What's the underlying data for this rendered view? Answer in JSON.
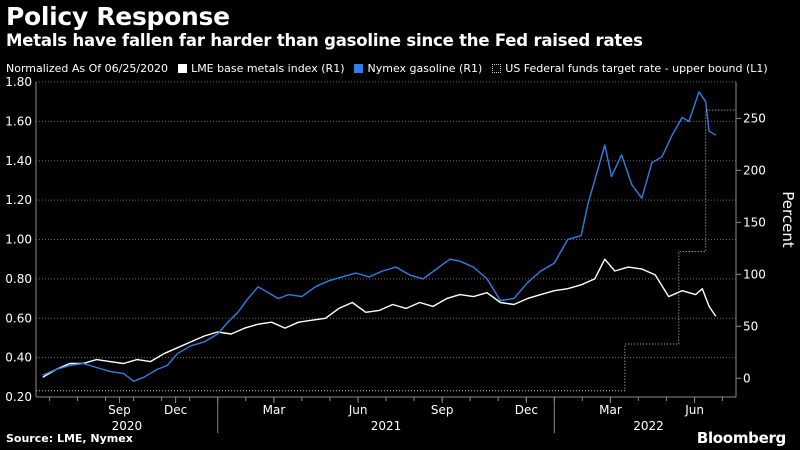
{
  "title": "Policy Response",
  "subtitle": "Metals have fallen far harder than gasoline since the Fed raised rates",
  "legend_note": "Normalized As Of 06/25/2020",
  "source": "Source: LME, Nymex",
  "brand": "Bloomberg",
  "colors": {
    "background": "#000000",
    "metals": "#ffffff",
    "gasoline": "#2f7fe8",
    "fed": "#cccccc",
    "grid": "#6a6a6a",
    "axis": "#8a8a8a"
  },
  "chart_data": {
    "type": "line",
    "title": "Policy Response",
    "xlabel": "",
    "ylabel_left": "",
    "ylabel_right": "Percent",
    "x_range": [
      2020.46,
      2022.54
    ],
    "y_left": {
      "range": [
        0.2,
        1.8
      ],
      "ticks": [
        0.2,
        0.4,
        0.6,
        0.8,
        1.0,
        1.2,
        1.4,
        1.6,
        1.8
      ],
      "tick_labels": [
        "0.20",
        "0.40",
        "0.60",
        "0.80",
        "1.00",
        "1.20",
        "1.40",
        "1.60",
        "1.80"
      ]
    },
    "y_right": {
      "range": [
        -18,
        285
      ],
      "ticks": [
        0,
        50,
        100,
        150,
        200,
        250
      ],
      "tick_labels": [
        "0",
        "50",
        "100",
        "150",
        "200",
        "250"
      ]
    },
    "x_month_ticks": [
      {
        "x": 2020.708,
        "label": "Sep"
      },
      {
        "x": 2020.875,
        "label": "Dec"
      },
      {
        "x": 2021.167,
        "label": "Mar"
      },
      {
        "x": 2021.417,
        "label": "Jun"
      },
      {
        "x": 2021.667,
        "label": "Sep"
      },
      {
        "x": 2021.917,
        "label": "Dec"
      },
      {
        "x": 2022.167,
        "label": "Mar"
      },
      {
        "x": 2022.417,
        "label": "Jun"
      }
    ],
    "x_year_labels": [
      {
        "x": 2020.73,
        "label": "2020"
      },
      {
        "x": 2021.5,
        "label": "2021"
      },
      {
        "x": 2022.28,
        "label": "2022"
      }
    ],
    "x_year_dividers": [
      2021.0,
      2022.0
    ],
    "grid": true,
    "legend_position": "top",
    "series": [
      {
        "name": "LME base metals index (R1)",
        "axis": "left",
        "color": "#ffffff",
        "points": [
          [
            2020.48,
            0.3
          ],
          [
            2020.52,
            0.34
          ],
          [
            2020.56,
            0.37
          ],
          [
            2020.6,
            0.37
          ],
          [
            2020.64,
            0.39
          ],
          [
            2020.68,
            0.38
          ],
          [
            2020.72,
            0.37
          ],
          [
            2020.76,
            0.39
          ],
          [
            2020.8,
            0.38
          ],
          [
            2020.84,
            0.42
          ],
          [
            2020.88,
            0.45
          ],
          [
            2020.92,
            0.48
          ],
          [
            2020.96,
            0.51
          ],
          [
            2021.0,
            0.53
          ],
          [
            2021.04,
            0.52
          ],
          [
            2021.08,
            0.55
          ],
          [
            2021.12,
            0.57
          ],
          [
            2021.16,
            0.58
          ],
          [
            2021.2,
            0.55
          ],
          [
            2021.24,
            0.58
          ],
          [
            2021.28,
            0.59
          ],
          [
            2021.32,
            0.6
          ],
          [
            2021.36,
            0.65
          ],
          [
            2021.4,
            0.68
          ],
          [
            2021.44,
            0.63
          ],
          [
            2021.48,
            0.64
          ],
          [
            2021.52,
            0.67
          ],
          [
            2021.56,
            0.65
          ],
          [
            2021.6,
            0.68
          ],
          [
            2021.64,
            0.66
          ],
          [
            2021.68,
            0.7
          ],
          [
            2021.72,
            0.72
          ],
          [
            2021.76,
            0.71
          ],
          [
            2021.8,
            0.73
          ],
          [
            2021.84,
            0.68
          ],
          [
            2021.88,
            0.67
          ],
          [
            2021.92,
            0.7
          ],
          [
            2021.96,
            0.72
          ],
          [
            2022.0,
            0.74
          ],
          [
            2022.04,
            0.75
          ],
          [
            2022.08,
            0.77
          ],
          [
            2022.12,
            0.8
          ],
          [
            2022.15,
            0.9
          ],
          [
            2022.18,
            0.84
          ],
          [
            2022.22,
            0.86
          ],
          [
            2022.26,
            0.85
          ],
          [
            2022.3,
            0.82
          ],
          [
            2022.34,
            0.71
          ],
          [
            2022.38,
            0.74
          ],
          [
            2022.42,
            0.72
          ],
          [
            2022.44,
            0.75
          ],
          [
            2022.46,
            0.66
          ],
          [
            2022.48,
            0.61
          ]
        ]
      },
      {
        "name": "Nymex gasoline (R1)",
        "axis": "left",
        "color": "#2f7fe8",
        "points": [
          [
            2020.48,
            0.31
          ],
          [
            2020.52,
            0.34
          ],
          [
            2020.56,
            0.36
          ],
          [
            2020.6,
            0.37
          ],
          [
            2020.64,
            0.35
          ],
          [
            2020.68,
            0.33
          ],
          [
            2020.72,
            0.32
          ],
          [
            2020.75,
            0.28
          ],
          [
            2020.78,
            0.3
          ],
          [
            2020.82,
            0.34
          ],
          [
            2020.85,
            0.36
          ],
          [
            2020.88,
            0.42
          ],
          [
            2020.92,
            0.46
          ],
          [
            2020.96,
            0.48
          ],
          [
            2021.0,
            0.52
          ],
          [
            2021.03,
            0.58
          ],
          [
            2021.06,
            0.63
          ],
          [
            2021.09,
            0.7
          ],
          [
            2021.12,
            0.76
          ],
          [
            2021.15,
            0.73
          ],
          [
            2021.18,
            0.7
          ],
          [
            2021.21,
            0.72
          ],
          [
            2021.25,
            0.71
          ],
          [
            2021.29,
            0.76
          ],
          [
            2021.33,
            0.79
          ],
          [
            2021.37,
            0.81
          ],
          [
            2021.41,
            0.83
          ],
          [
            2021.45,
            0.81
          ],
          [
            2021.49,
            0.84
          ],
          [
            2021.53,
            0.86
          ],
          [
            2021.57,
            0.82
          ],
          [
            2021.61,
            0.8
          ],
          [
            2021.65,
            0.85
          ],
          [
            2021.69,
            0.9
          ],
          [
            2021.72,
            0.89
          ],
          [
            2021.76,
            0.86
          ],
          [
            2021.8,
            0.8
          ],
          [
            2021.84,
            0.69
          ],
          [
            2021.88,
            0.7
          ],
          [
            2021.92,
            0.78
          ],
          [
            2021.96,
            0.84
          ],
          [
            2022.0,
            0.88
          ],
          [
            2022.04,
            1.0
          ],
          [
            2022.08,
            1.02
          ],
          [
            2022.1,
            1.18
          ],
          [
            2022.12,
            1.3
          ],
          [
            2022.15,
            1.48
          ],
          [
            2022.17,
            1.32
          ],
          [
            2022.2,
            1.43
          ],
          [
            2022.23,
            1.28
          ],
          [
            2022.26,
            1.21
          ],
          [
            2022.29,
            1.39
          ],
          [
            2022.32,
            1.42
          ],
          [
            2022.35,
            1.53
          ],
          [
            2022.38,
            1.62
          ],
          [
            2022.4,
            1.6
          ],
          [
            2022.43,
            1.75
          ],
          [
            2022.45,
            1.7
          ],
          [
            2022.46,
            1.55
          ],
          [
            2022.48,
            1.53
          ]
        ]
      },
      {
        "name": "US Federal funds target rate - upper bound (L1)",
        "axis": "right",
        "color": "#cccccc",
        "step": true,
        "points": [
          [
            2020.46,
            -12
          ],
          [
            2022.21,
            -12
          ],
          [
            2022.21,
            33
          ],
          [
            2022.37,
            33
          ],
          [
            2022.37,
            122
          ],
          [
            2022.45,
            122
          ],
          [
            2022.45,
            258
          ],
          [
            2022.54,
            258
          ]
        ]
      }
    ]
  }
}
